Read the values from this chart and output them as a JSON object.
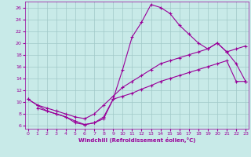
{
  "xlabel": "Windchill (Refroidissement éolien,°C)",
  "bg_color": "#c8eae8",
  "line_color": "#990099",
  "grid_color": "#a0c8c8",
  "x_ticks": [
    0,
    1,
    2,
    3,
    4,
    5,
    6,
    7,
    8,
    9,
    10,
    11,
    12,
    13,
    14,
    15,
    16,
    17,
    18,
    19,
    20,
    21,
    22,
    23
  ],
  "y_ticks": [
    6,
    8,
    10,
    12,
    14,
    16,
    18,
    20,
    22,
    24,
    26
  ],
  "xlim": [
    -0.3,
    23.3
  ],
  "ylim": [
    5.5,
    27.0
  ],
  "line1_x": [
    0,
    1,
    2,
    3,
    4,
    5,
    6,
    7,
    8,
    9,
    10,
    11,
    12,
    13,
    14,
    15,
    16,
    17,
    18,
    19,
    20,
    21,
    22,
    23
  ],
  "line1_y": [
    10.5,
    9.5,
    8.5,
    8.0,
    7.5,
    6.5,
    6.2,
    6.5,
    7.5,
    10.5,
    15.5,
    21.0,
    23.5,
    26.5,
    26.0,
    25.0,
    23.0,
    21.5,
    20.0,
    19.0,
    20.0,
    18.5,
    16.5,
    13.5
  ],
  "line2_x": [
    0,
    1,
    2,
    3,
    4,
    5,
    6,
    7,
    8,
    9,
    10,
    11,
    12,
    13,
    14,
    15,
    16,
    17,
    18,
    19,
    20,
    21,
    22,
    23
  ],
  "line2_y": [
    10.5,
    9.5,
    9.0,
    8.5,
    8.0,
    7.5,
    7.2,
    8.0,
    9.5,
    11.0,
    12.5,
    13.5,
    14.5,
    15.5,
    16.5,
    17.0,
    17.5,
    18.0,
    18.5,
    19.0,
    20.0,
    18.5,
    19.0,
    19.5
  ],
  "line3_x": [
    1,
    2,
    3,
    4,
    5,
    6,
    7,
    8,
    9,
    10,
    11,
    12,
    13,
    14,
    15,
    16,
    17,
    18,
    19,
    20,
    21,
    22,
    23
  ],
  "line3_y": [
    9.0,
    8.5,
    8.0,
    7.5,
    6.8,
    6.2,
    6.5,
    7.2,
    10.5,
    11.0,
    11.5,
    12.2,
    12.8,
    13.5,
    14.0,
    14.5,
    15.0,
    15.5,
    16.0,
    16.5,
    17.0,
    13.5,
    13.5
  ]
}
